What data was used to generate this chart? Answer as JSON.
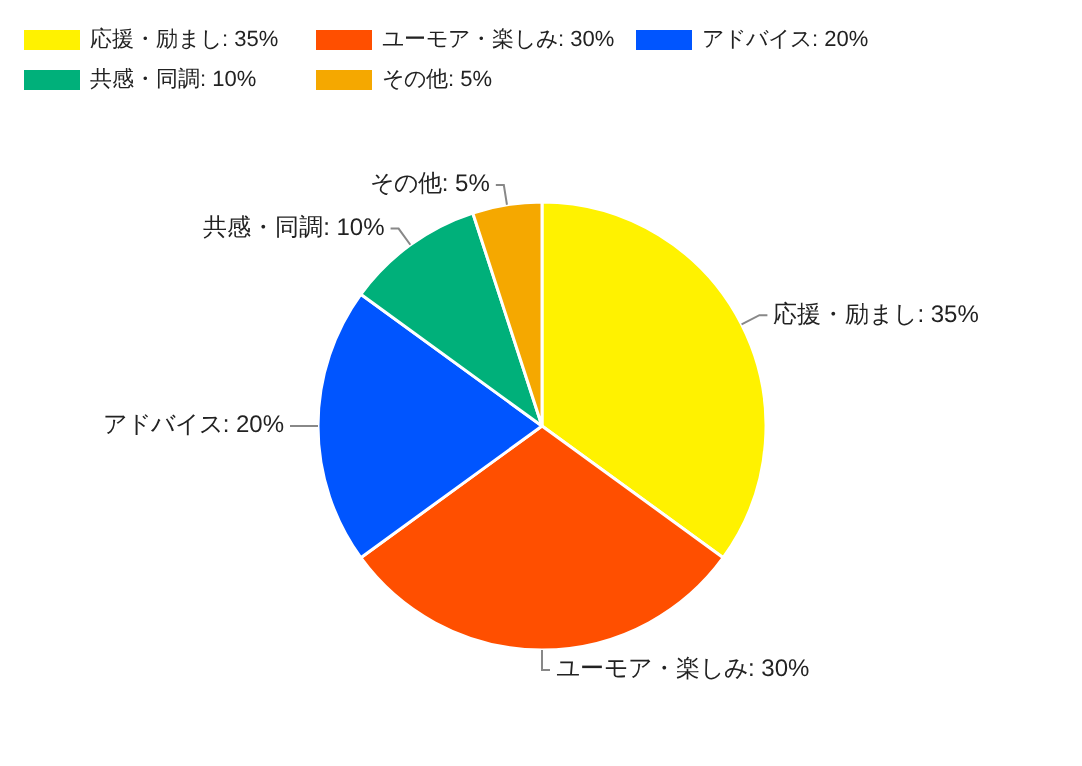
{
  "chart_data": {
    "type": "pie",
    "categories": [
      "応援・励まし: 35%",
      "ユーモア・楽しみ: 30%",
      "アドバイス: 20%",
      "共感・同調: 10%",
      "その他: 5%"
    ],
    "values": [
      35,
      30,
      20,
      10,
      5
    ],
    "colors": [
      "#fff200",
      "#ff4f00",
      "#0055ff",
      "#00b07a",
      "#f5a800"
    ],
    "legend": "top left"
  }
}
